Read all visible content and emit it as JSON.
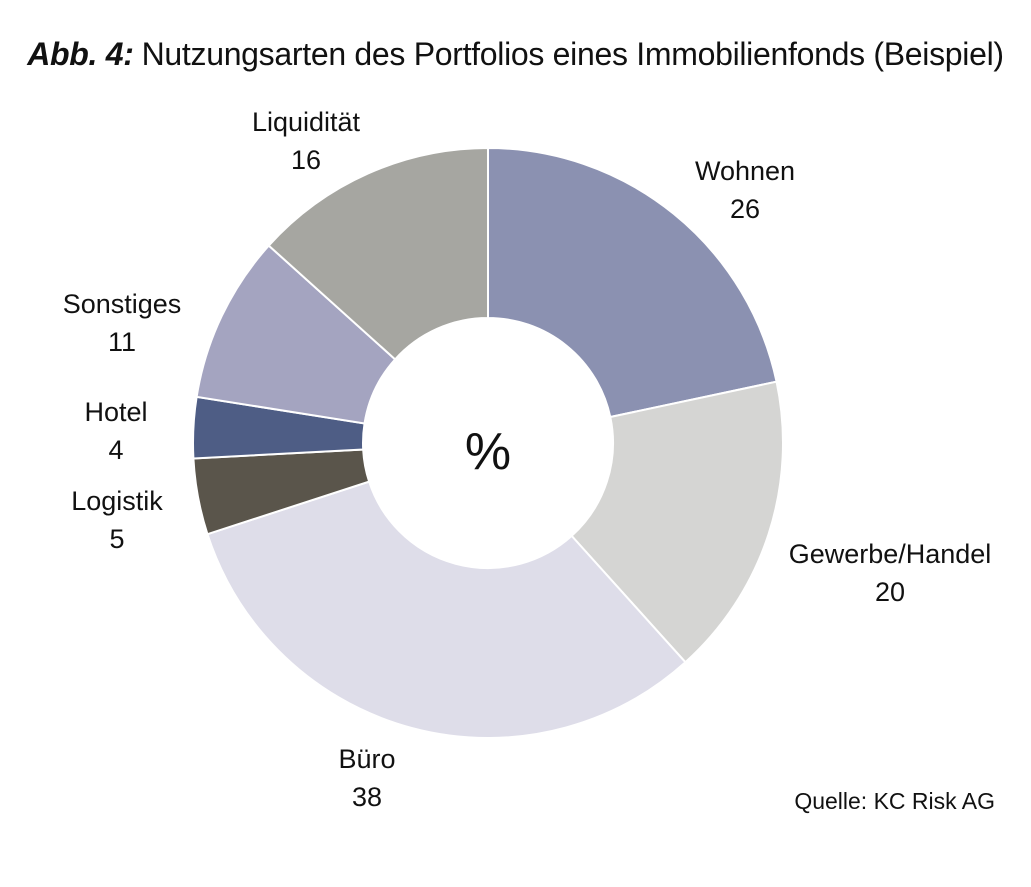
{
  "title": {
    "prefix": "Abb. 4:",
    "text": "Nutzungsarten des Portfolios eines Immobilienfonds (Beispiel)"
  },
  "source": "Quelle: KC Risk AG",
  "chart_data": {
    "type": "pie",
    "variant": "donut",
    "unit": "%",
    "center_label": "%",
    "slices": [
      {
        "label": "Wohnen",
        "value": 26,
        "color": "#8b91b1"
      },
      {
        "label": "Gewerbe/Handel",
        "value": 20,
        "color": "#d5d5d3"
      },
      {
        "label": "Büro",
        "value": 38,
        "color": "#dedde9"
      },
      {
        "label": "Logistik",
        "value": 5,
        "color": "#5a554b"
      },
      {
        "label": "Hotel",
        "value": 4,
        "color": "#4e5d85"
      },
      {
        "label": "Sonstiges",
        "value": 11,
        "color": "#a4a4c0"
      },
      {
        "label": "Liquidität",
        "value": 16,
        "color": "#a6a6a1"
      }
    ]
  }
}
